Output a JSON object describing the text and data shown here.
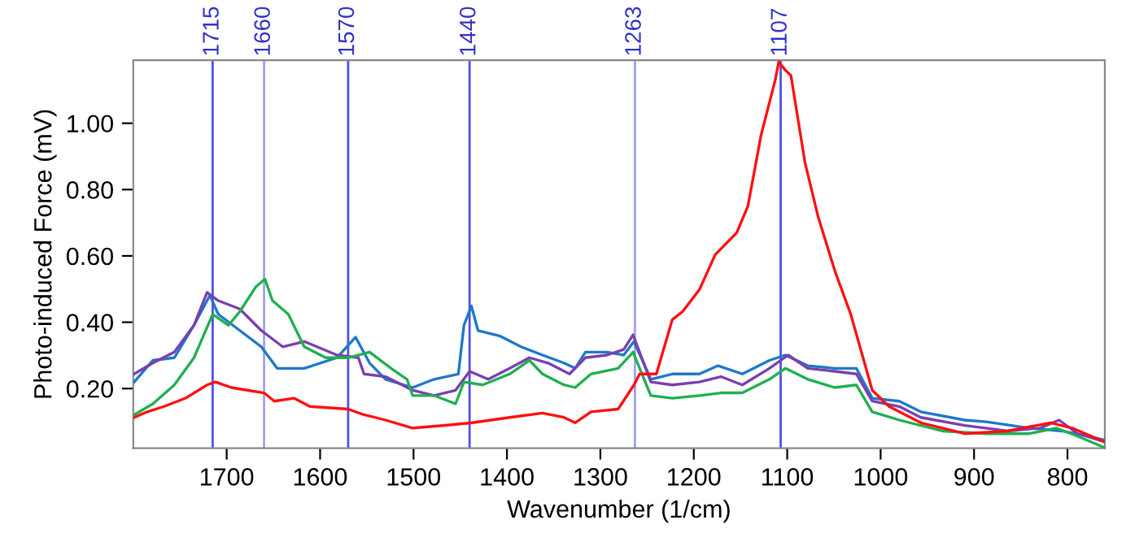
{
  "chart_data": {
    "type": "line",
    "xlabel": "Wavenumber (1/cm)",
    "ylabel": "Photo-induced Force (mV)",
    "xlim": [
      1800,
      760
    ],
    "ylim": [
      0.02,
      1.19
    ],
    "xticks": [
      1700,
      1600,
      1500,
      1400,
      1300,
      1200,
      1100,
      1000,
      900,
      800
    ],
    "yticks": [
      {
        "value": 0.2,
        "label": "0.20"
      },
      {
        "value": 0.4,
        "label": "0.40"
      },
      {
        "value": 0.6,
        "label": "0.60"
      },
      {
        "value": 0.8,
        "label": "0.80"
      },
      {
        "value": 1.0,
        "label": "1.00"
      }
    ],
    "grid": false,
    "marker": "none",
    "line_style": "solid",
    "ref_lines": [
      {
        "axis": "x",
        "value": 1715,
        "label": "1715",
        "color": "#5050e0"
      },
      {
        "axis": "x",
        "value": 1660,
        "label": "1660",
        "color": "#a0a0f0"
      },
      {
        "axis": "x",
        "value": 1570,
        "label": "1570",
        "color": "#5050e0"
      },
      {
        "axis": "x",
        "value": 1440,
        "label": "1440",
        "color": "#5050e0"
      },
      {
        "axis": "x",
        "value": 1263,
        "label": "1263",
        "color": "#a0a0f0"
      },
      {
        "axis": "x",
        "value": 1107,
        "label": "1107",
        "color": "#5050e0"
      }
    ],
    "series": [
      {
        "color": "#1f78c8",
        "x": [
          1799,
          1779,
          1756,
          1735,
          1718,
          1709,
          1686,
          1663,
          1646,
          1617,
          1582,
          1562,
          1547,
          1530,
          1501,
          1478,
          1452,
          1446,
          1438,
          1431,
          1408,
          1385,
          1362,
          1339,
          1327,
          1316,
          1293,
          1275,
          1264,
          1246,
          1223,
          1194,
          1174,
          1148,
          1119,
          1102,
          1078,
          1049,
          1026,
          1009,
          980,
          957,
          910,
          887,
          841,
          806,
          777,
          761
        ],
        "values": [
          0.22,
          0.285,
          0.293,
          0.391,
          0.481,
          0.424,
          0.375,
          0.326,
          0.261,
          0.261,
          0.293,
          0.355,
          0.277,
          0.228,
          0.203,
          0.228,
          0.244,
          0.391,
          0.449,
          0.375,
          0.359,
          0.326,
          0.301,
          0.277,
          0.261,
          0.31,
          0.31,
          0.301,
          0.342,
          0.228,
          0.244,
          0.244,
          0.269,
          0.244,
          0.285,
          0.301,
          0.269,
          0.261,
          0.261,
          0.171,
          0.162,
          0.13,
          0.105,
          0.1,
          0.081,
          0.072,
          0.056,
          0.045
        ]
      },
      {
        "color": "#7a3fb0",
        "x": [
          1799,
          1779,
          1756,
          1735,
          1721,
          1709,
          1686,
          1663,
          1640,
          1617,
          1582,
          1559,
          1553,
          1530,
          1501,
          1478,
          1455,
          1440,
          1420,
          1397,
          1376,
          1356,
          1333,
          1316,
          1293,
          1275,
          1265,
          1246,
          1223,
          1194,
          1171,
          1148,
          1119,
          1099,
          1078,
          1049,
          1026,
          1009,
          980,
          957,
          910,
          864,
          829,
          809,
          789,
          761
        ],
        "values": [
          0.244,
          0.277,
          0.31,
          0.391,
          0.49,
          0.465,
          0.44,
          0.375,
          0.326,
          0.342,
          0.301,
          0.293,
          0.244,
          0.236,
          0.195,
          0.179,
          0.195,
          0.252,
          0.228,
          0.261,
          0.293,
          0.277,
          0.244,
          0.293,
          0.301,
          0.318,
          0.362,
          0.22,
          0.211,
          0.22,
          0.236,
          0.211,
          0.261,
          0.301,
          0.261,
          0.252,
          0.244,
          0.162,
          0.146,
          0.113,
          0.089,
          0.072,
          0.081,
          0.105,
          0.064,
          0.04
        ]
      },
      {
        "color": "#1fb050",
        "x": [
          1799,
          1779,
          1756,
          1735,
          1715,
          1698,
          1686,
          1669,
          1659,
          1651,
          1634,
          1617,
          1594,
          1570,
          1547,
          1524,
          1507,
          1501,
          1478,
          1455,
          1446,
          1426,
          1397,
          1376,
          1362,
          1339,
          1327,
          1310,
          1281,
          1265,
          1246,
          1223,
          1194,
          1171,
          1148,
          1119,
          1102,
          1078,
          1049,
          1026,
          1009,
          980,
          934,
          887,
          841,
          812,
          789,
          761
        ],
        "values": [
          0.121,
          0.154,
          0.211,
          0.293,
          0.424,
          0.391,
          0.432,
          0.506,
          0.53,
          0.465,
          0.424,
          0.326,
          0.293,
          0.293,
          0.31,
          0.261,
          0.228,
          0.179,
          0.179,
          0.154,
          0.22,
          0.211,
          0.244,
          0.285,
          0.244,
          0.211,
          0.203,
          0.244,
          0.261,
          0.31,
          0.179,
          0.171,
          0.179,
          0.187,
          0.187,
          0.228,
          0.261,
          0.228,
          0.203,
          0.211,
          0.13,
          0.105,
          0.072,
          0.064,
          0.064,
          0.081,
          0.056,
          0.023
        ]
      },
      {
        "color": "#ff1010",
        "x": [
          1799,
          1785,
          1767,
          1744,
          1721,
          1712,
          1695,
          1678,
          1660,
          1649,
          1628,
          1611,
          1570,
          1553,
          1530,
          1501,
          1466,
          1437,
          1397,
          1362,
          1339,
          1327,
          1310,
          1281,
          1264,
          1258,
          1240,
          1223,
          1212,
          1194,
          1177,
          1154,
          1142,
          1128,
          1113,
          1109,
          1102,
          1096,
          1081,
          1067,
          1049,
          1032,
          1009,
          991,
          957,
          910,
          864,
          818,
          795,
          761
        ],
        "values": [
          0.113,
          0.13,
          0.146,
          0.171,
          0.211,
          0.22,
          0.203,
          0.195,
          0.187,
          0.162,
          0.171,
          0.146,
          0.138,
          0.121,
          0.105,
          0.081,
          0.089,
          0.097,
          0.113,
          0.126,
          0.113,
          0.097,
          0.13,
          0.138,
          0.211,
          0.244,
          0.244,
          0.408,
          0.432,
          0.498,
          0.604,
          0.67,
          0.751,
          0.964,
          1.128,
          1.185,
          1.16,
          1.144,
          0.882,
          0.719,
          0.555,
          0.424,
          0.195,
          0.146,
          0.097,
          0.064,
          0.072,
          0.097,
          0.081,
          0.04
        ]
      }
    ]
  }
}
